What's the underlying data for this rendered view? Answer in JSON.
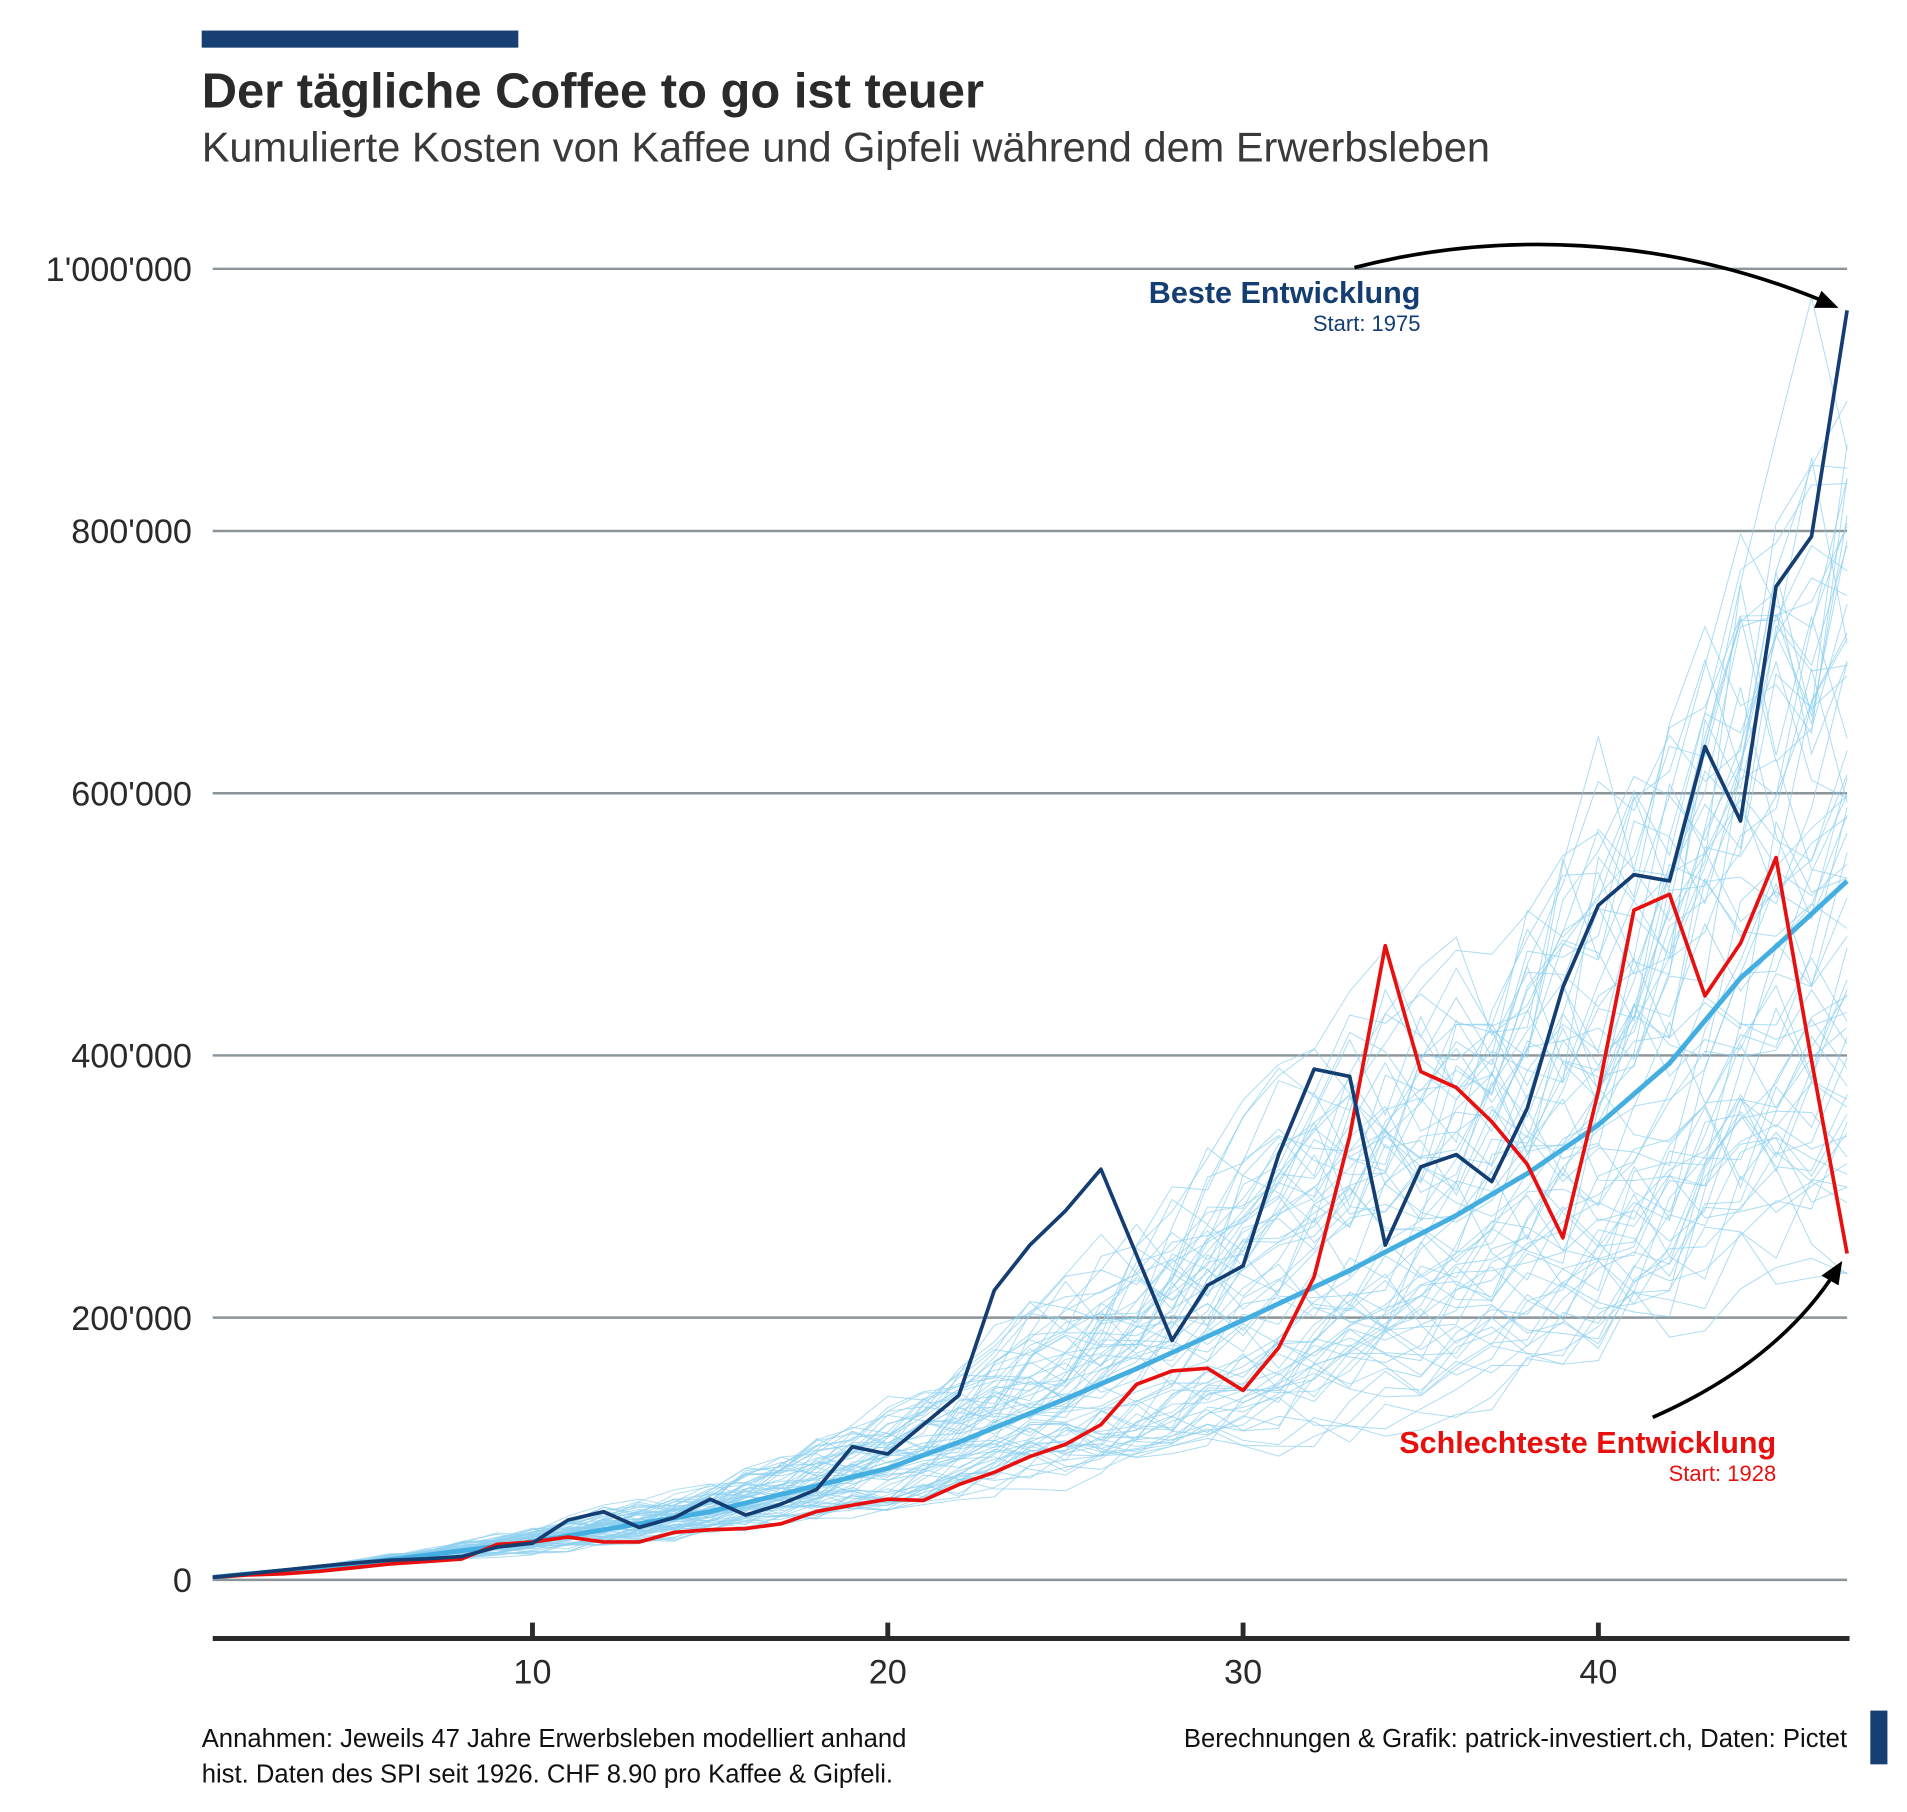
{
  "header": {
    "title": "Der tägliche Coffee to go ist teuer",
    "subtitle": "Kumulierte Kosten von Kaffee und Gipfeli während dem Erwerbsleben"
  },
  "annotations": {
    "best_label": "Beste Entwicklung",
    "best_start": "Start: 1975",
    "worst_label": "Schlechteste Entwicklung",
    "worst_start": "Start: 1928"
  },
  "footer": {
    "assumptions_line1": "Annahmen: Jeweils 47 Jahre Erwerbsleben modelliert anhand",
    "assumptions_line2": "hist. Daten des SPI seit 1926. CHF 8.90 pro Kaffee & Gipfeli.",
    "source": "Berechnungen & Grafik: patrick-investiert.ch, Daten: Pictet"
  },
  "colors": {
    "brand": "#173f73",
    "best": "#143d72",
    "worst": "#e8100f",
    "median": "#45aee0",
    "simulations": "#8fd0ef",
    "grid": "#8a9499",
    "text": "#2a2a2a"
  },
  "chart_data": {
    "type": "line",
    "title": "Der tägliche Coffee to go ist teuer",
    "subtitle": "Kumulierte Kosten von Kaffee und Gipfeli während dem Erwerbsleben",
    "xlabel": "",
    "ylabel": "",
    "xlim": [
      1,
      47
    ],
    "ylim": [
      -100000,
      1000000
    ],
    "x_ticks": [
      10,
      20,
      30,
      40
    ],
    "x_tick_labels": [
      "10",
      "20",
      "30",
      "40"
    ],
    "y_ticks": [
      0,
      200000,
      400000,
      600000,
      800000,
      1000000
    ],
    "y_tick_labels": [
      "0",
      "200'000",
      "400'000",
      "600'000",
      "800'000",
      "1'000'000"
    ],
    "grid": "horizontal",
    "legend": "none",
    "series": [
      {
        "name": "Beste Entwicklung",
        "x": [
          1,
          2,
          3,
          4,
          5,
          6,
          7,
          8,
          9,
          10,
          11,
          12,
          13,
          14,
          15,
          16,
          17,
          18,
          19,
          20,
          21,
          22,
          23,
          24,
          25,
          26,
          27,
          28,
          29,
          30,
          31,
          32,
          33,
          34,
          35,
          36,
          37,
          38,
          39,
          40,
          41,
          42,
          43,
          44,
          45,
          46,
          47
        ],
        "y": [
          2000,
          4700,
          7500,
          10300,
          13000,
          15000,
          16000,
          17700,
          25000,
          28000,
          45700,
          52000,
          40000,
          47500,
          61500,
          49400,
          57800,
          69000,
          101600,
          96000,
          118400,
          140700,
          220900,
          255400,
          281500,
          313200,
          247900,
          182700,
          224600,
          239500,
          324300,
          389600,
          384000,
          255400,
          315000,
          324300,
          303800,
          359800,
          452000,
          514500,
          537800,
          533100,
          635600,
          578800,
          757700,
          795900,
          968300
        ]
      },
      {
        "name": "Schlechteste Entwicklung",
        "x": [
          1,
          2,
          3,
          4,
          5,
          6,
          7,
          8,
          9,
          10,
          11,
          12,
          13,
          14,
          15,
          16,
          17,
          18,
          19,
          20,
          21,
          22,
          23,
          24,
          25,
          26,
          27,
          28,
          29,
          30,
          31,
          32,
          33,
          34,
          35,
          36,
          37,
          38,
          39,
          40,
          41,
          42,
          43,
          44,
          45,
          46,
          47
        ],
        "y": [
          2000,
          3700,
          4700,
          6500,
          9300,
          12100,
          14000,
          15800,
          27000,
          28900,
          32600,
          28900,
          28900,
          36300,
          38200,
          39100,
          42800,
          52200,
          56900,
          61500,
          60600,
          72700,
          82000,
          94000,
          103400,
          118400,
          149100,
          159400,
          161300,
          144500,
          177100,
          231100,
          338300,
          483700,
          387700,
          375500,
          349500,
          316900,
          260900,
          372800,
          510800,
          522900,
          445500,
          485600,
          550900,
          396200,
          248900
        ]
      },
      {
        "x": [
          1,
          5,
          10,
          15,
          20,
          22,
          25,
          27,
          30,
          33,
          36,
          38,
          40,
          42,
          44,
          45,
          47
        ],
        "y": [
          2000,
          12000,
          29000,
          52000,
          85000,
          105000,
          138000,
          161000,
          198000,
          236000,
          278000,
          310000,
          347000,
          394000,
          459000,
          483000,
          533000
        ]
      }
    ]
  }
}
